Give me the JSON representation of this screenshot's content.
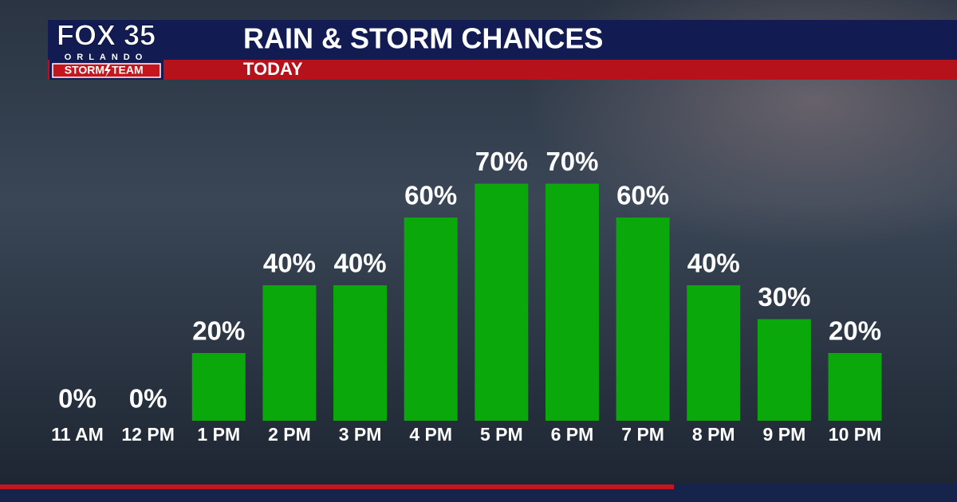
{
  "logo": {
    "brand": "FOX 35",
    "city": "ORLANDO",
    "team_left": "STORM",
    "team_right": "TEAM"
  },
  "chart_data": {
    "type": "bar",
    "title": "RAIN & STORM CHANCES",
    "subtitle": "TODAY",
    "categories": [
      "11 AM",
      "12 PM",
      "1 PM",
      "2 PM",
      "3 PM",
      "4 PM",
      "5 PM",
      "6 PM",
      "7 PM",
      "8 PM",
      "9 PM",
      "10 PM"
    ],
    "values": [
      0,
      0,
      20,
      40,
      40,
      60,
      70,
      70,
      60,
      40,
      30,
      20
    ],
    "value_labels": [
      "0%",
      "0%",
      "20%",
      "40%",
      "40%",
      "60%",
      "70%",
      "70%",
      "60%",
      "40%",
      "30%",
      "20%"
    ],
    "color": "#0aa80a"
  }
}
